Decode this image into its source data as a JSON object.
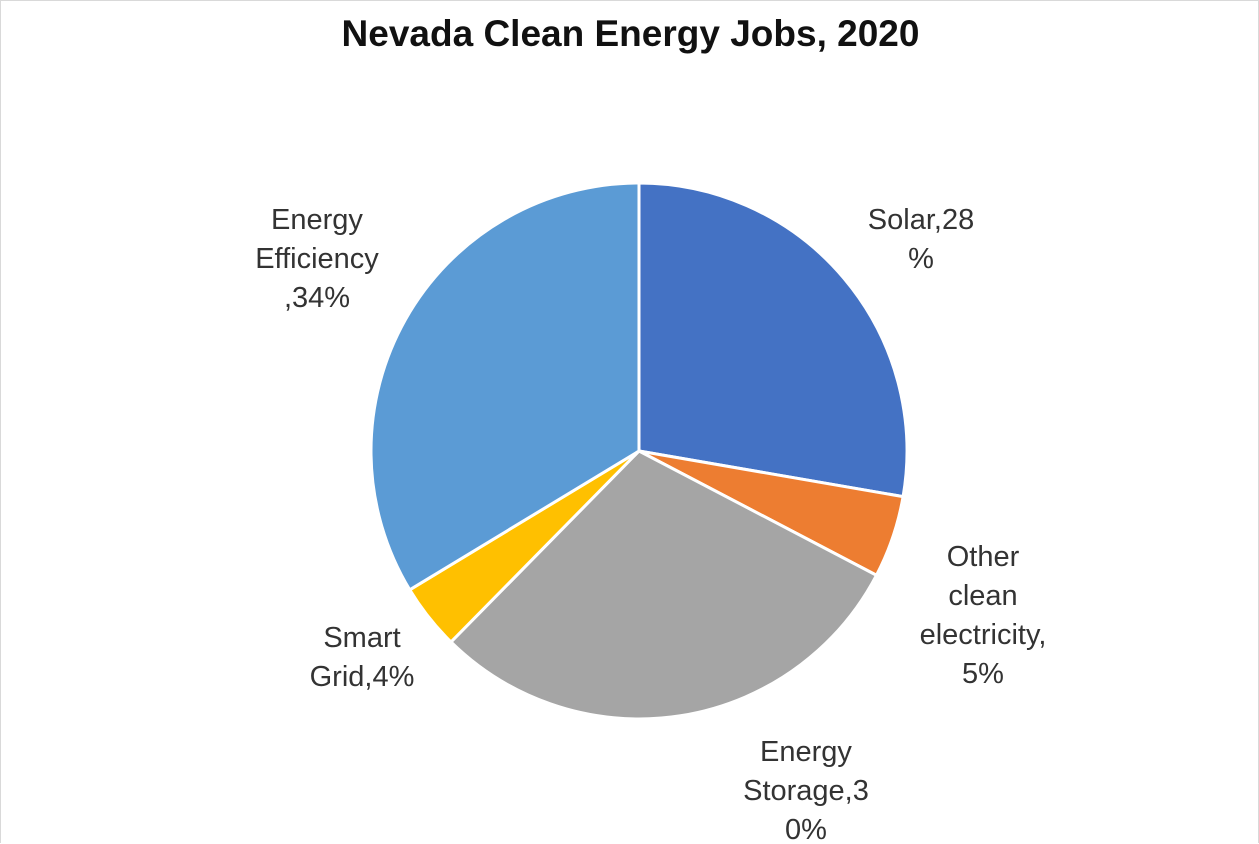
{
  "chart_data": {
    "type": "pie",
    "title": "Nevada Clean Energy Jobs, 2020",
    "slices": [
      {
        "label_lines": [
          "Solar,28",
          "%"
        ],
        "value": 28,
        "color": "#4472C4"
      },
      {
        "label_lines": [
          "Other",
          "clean",
          "electricity,",
          "5%"
        ],
        "value": 5,
        "color": "#ED7D31"
      },
      {
        "label_lines": [
          "Energy",
          "Storage,3",
          "0%"
        ],
        "value": 30,
        "color": "#A5A5A5"
      },
      {
        "label_lines": [
          "Smart",
          "Grid,4%"
        ],
        "value": 4,
        "color": "#FFC000"
      },
      {
        "label_lines": [
          "Energy",
          "Efficiency",
          ",34%"
        ],
        "value": 34,
        "color": "#5B9BD5"
      }
    ]
  }
}
